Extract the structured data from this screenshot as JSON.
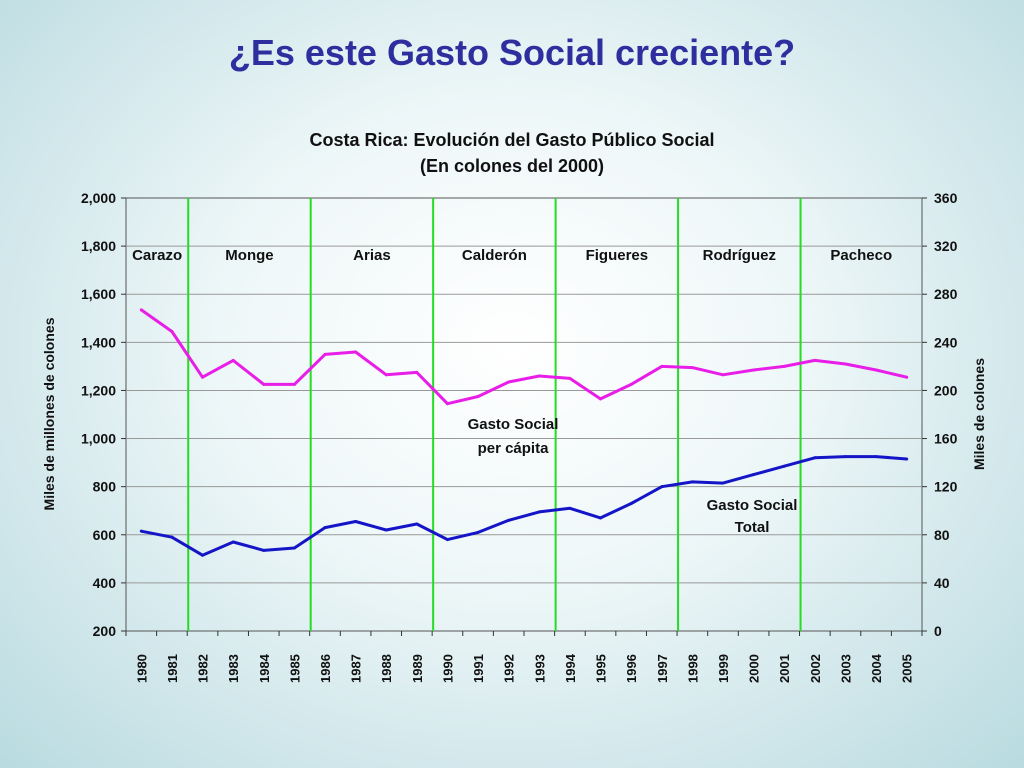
{
  "slide": {
    "title": "¿Es este Gasto Social creciente?"
  },
  "chart_data": {
    "type": "line",
    "title": "Costa Rica: Evolución del Gasto Público Social",
    "subtitle": "(En colones del 2000)",
    "ylabel": "Miles de millones de colones",
    "y2label": "Miles de colones",
    "ylim": [
      200,
      2000
    ],
    "y2lim": [
      0,
      360
    ],
    "yticks": [
      "200",
      "400",
      "600",
      "800",
      "1,000",
      "1,200",
      "1,400",
      "1,600",
      "1,800",
      "2,000"
    ],
    "y2ticks": [
      "0",
      "40",
      "80",
      "120",
      "160",
      "200",
      "240",
      "280",
      "320",
      "360"
    ],
    "categories": [
      "1980",
      "1981",
      "1982",
      "1983",
      "1984",
      "1985",
      "1986",
      "1987",
      "1988",
      "1989",
      "1990",
      "1991",
      "1992",
      "1993",
      "1994",
      "1995",
      "1996",
      "1997",
      "1998",
      "1999",
      "2000",
      "2001",
      "2002",
      "2003",
      "2004",
      "2005"
    ],
    "grid": true,
    "series": [
      {
        "name": "Gasto Social per cápita",
        "label_lines": [
          "Gasto Social",
          "per cápita"
        ],
        "axis": "left",
        "color": "#e81ee8",
        "values": [
          1535,
          1445,
          1255,
          1325,
          1225,
          1225,
          1350,
          1360,
          1265,
          1275,
          1145,
          1175,
          1235,
          1260,
          1250,
          1165,
          1225,
          1300,
          1295,
          1265,
          1285,
          1300,
          1325,
          1310,
          1285,
          1255
        ]
      },
      {
        "name": "Gasto Social Total",
        "label_lines": [
          "Gasto Social",
          "Total"
        ],
        "axis": "left",
        "color": "#1515c8",
        "values": [
          615,
          590,
          515,
          570,
          535,
          545,
          630,
          655,
          620,
          645,
          580,
          610,
          660,
          695,
          710,
          670,
          730,
          800,
          820,
          815,
          850,
          885,
          920,
          925,
          925,
          915
        ]
      }
    ],
    "periods": [
      {
        "name": "Carazo"
      },
      {
        "name": "Monge"
      },
      {
        "name": "Arias"
      },
      {
        "name": "Calderón"
      },
      {
        "name": "Figueres"
      },
      {
        "name": "Rodríguez"
      },
      {
        "name": "Pacheco"
      }
    ],
    "period_boundaries": [
      "1982",
      "1986",
      "1990",
      "1994",
      "1998",
      "2002"
    ],
    "period_line_color": "#22dd22",
    "grid_color": "#999999"
  }
}
